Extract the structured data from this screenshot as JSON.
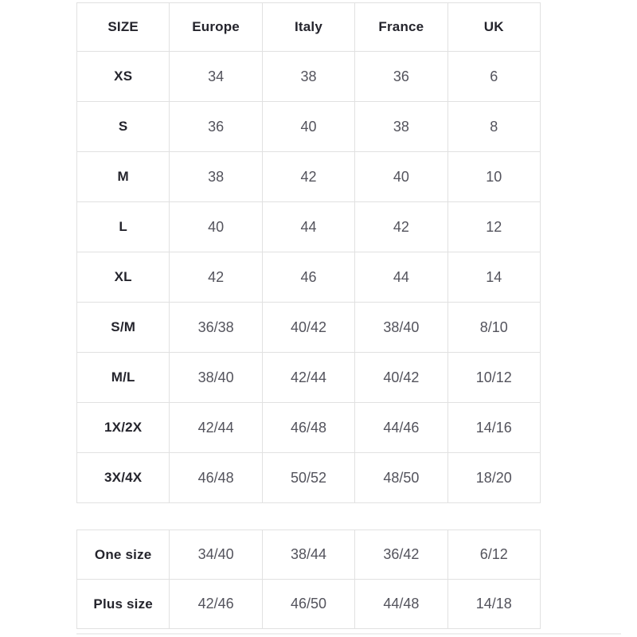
{
  "colors": {
    "background": "#ffffff",
    "border": "#e1e1e1",
    "heading_text": "#24242c",
    "value_text": "#53535c",
    "faint_line": "#efefef"
  },
  "size_table": {
    "headers": [
      "SIZE",
      "Europe",
      "Italy",
      "France",
      "UK"
    ],
    "rows": [
      {
        "label": "XS",
        "values": [
          "34",
          "38",
          "36",
          "6"
        ]
      },
      {
        "label": "S",
        "values": [
          "36",
          "40",
          "38",
          "8"
        ]
      },
      {
        "label": "M",
        "values": [
          "38",
          "42",
          "40",
          "10"
        ]
      },
      {
        "label": "L",
        "values": [
          "40",
          "44",
          "42",
          "12"
        ]
      },
      {
        "label": "XL",
        "values": [
          "42",
          "46",
          "44",
          "14"
        ]
      },
      {
        "label": "S/M",
        "values": [
          "36/38",
          "40/42",
          "38/40",
          "8/10"
        ]
      },
      {
        "label": "M/L",
        "values": [
          "38/40",
          "42/44",
          "40/42",
          "10/12"
        ]
      },
      {
        "label": "1X/2X",
        "values": [
          "42/44",
          "46/48",
          "44/46",
          "14/16"
        ]
      },
      {
        "label": "3X/4X",
        "values": [
          "46/48",
          "50/52",
          "48/50",
          "18/20"
        ]
      }
    ]
  },
  "special_table": {
    "rows": [
      {
        "label": "One size",
        "values": [
          "34/40",
          "38/44",
          "36/42",
          "6/12"
        ]
      },
      {
        "label": "Plus size",
        "values": [
          "42/46",
          "46/50",
          "44/48",
          "14/18"
        ]
      }
    ]
  }
}
